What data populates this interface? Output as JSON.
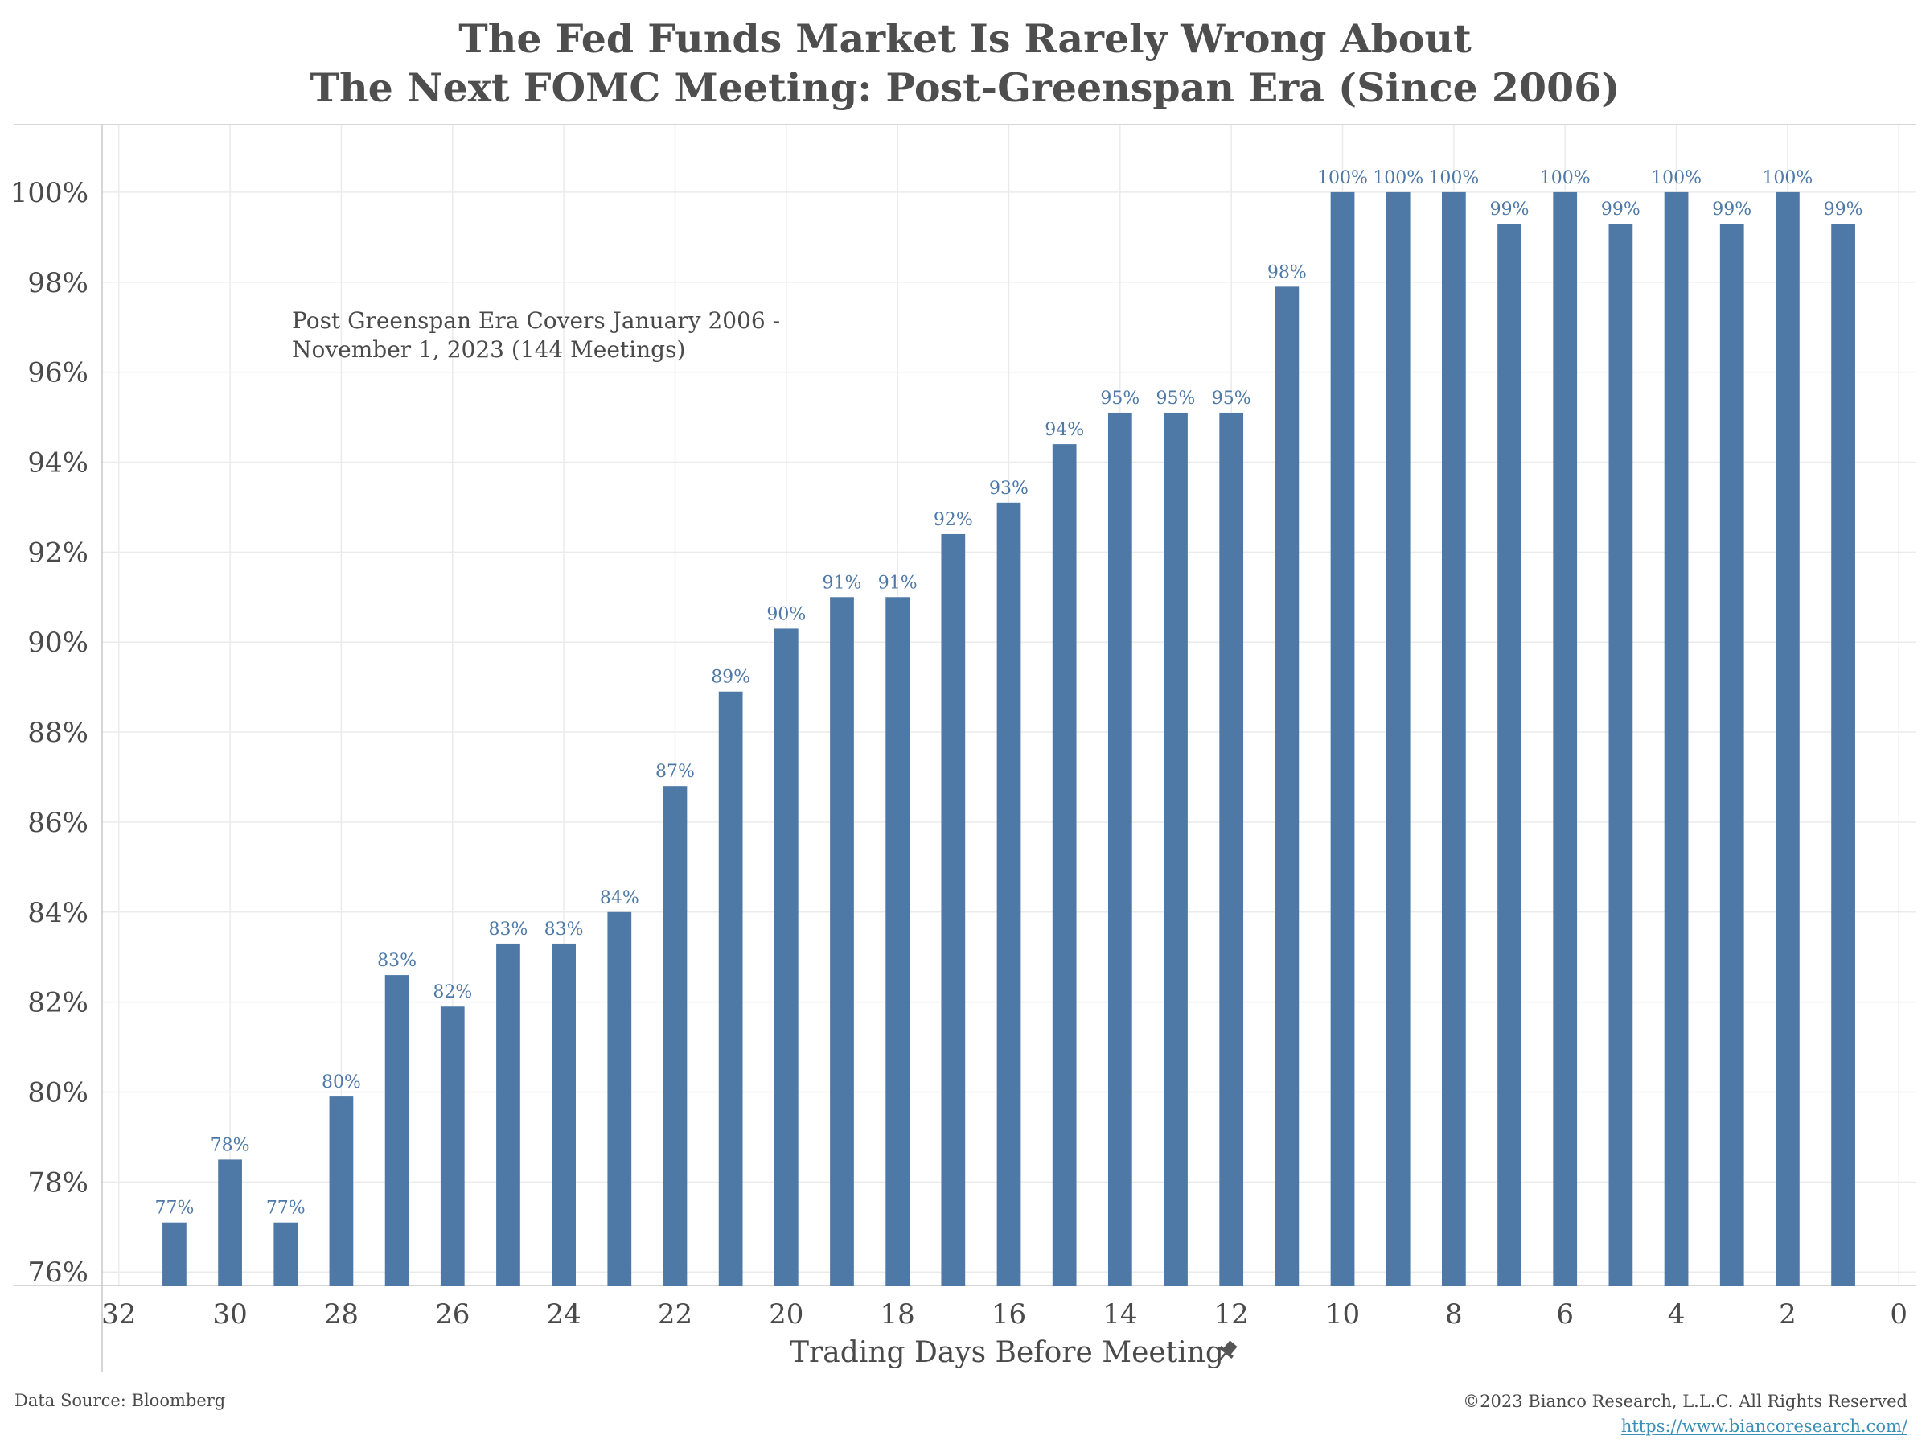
{
  "chart_data": {
    "type": "bar",
    "title": "The Fed Funds Market Is Rarely Wrong About",
    "subtitle": "The Next FOMC Meeting: Post-Greenspan Era (Since 2006)",
    "xlabel": "Trading Days Before Meeting",
    "annotation": "Post Greenspan Era Covers January 2006 -\nNovember 1, 2023 (144 Meetings)",
    "x": [
      31,
      30,
      29,
      28,
      27,
      26,
      25,
      24,
      23,
      22,
      21,
      20,
      19,
      18,
      17,
      16,
      15,
      14,
      13,
      12,
      11,
      10,
      9,
      8,
      7,
      6,
      5,
      4,
      3,
      2,
      1
    ],
    "values": [
      77.1,
      78.5,
      77.1,
      79.9,
      82.6,
      81.9,
      83.3,
      83.3,
      84.0,
      86.8,
      88.9,
      90.3,
      91.0,
      91.0,
      92.4,
      93.1,
      94.4,
      95.1,
      95.1,
      95.1,
      97.9,
      100.0,
      100.0,
      100.0,
      99.3,
      100.0,
      99.3,
      100.0,
      99.3,
      100.0,
      99.3
    ],
    "data_labels": [
      "77%",
      "78%",
      "77%",
      "80%",
      "83%",
      "82%",
      "83%",
      "83%",
      "84%",
      "87%",
      "89%",
      "90%",
      "91%",
      "91%",
      "92%",
      "93%",
      "94%",
      "95%",
      "95%",
      "95%",
      "98%",
      "100%",
      "100%",
      "100%",
      "99%",
      "100%",
      "99%",
      "100%",
      "99%",
      "100%",
      "99%"
    ],
    "ylim": [
      75.7,
      101.5
    ],
    "xlim": [
      32.3,
      -0.3
    ],
    "y_ticks": [
      76,
      78,
      80,
      82,
      84,
      86,
      88,
      90,
      92,
      94,
      96,
      98,
      100
    ],
    "y_tick_labels": [
      "76%",
      "78%",
      "80%",
      "82%",
      "84%",
      "86%",
      "88%",
      "90%",
      "92%",
      "94%",
      "96%",
      "98%",
      "100%"
    ],
    "x_ticks": [
      32,
      30,
      28,
      26,
      24,
      22,
      20,
      18,
      16,
      14,
      12,
      10,
      8,
      6,
      4,
      2,
      0
    ],
    "x_tick_labels": [
      "32",
      "30",
      "28",
      "26",
      "24",
      "22",
      "20",
      "18",
      "16",
      "14",
      "12",
      "10",
      "8",
      "6",
      "4",
      "2",
      "0"
    ],
    "x_reversed": true,
    "grid": true,
    "bar_color": "#4e79a7",
    "label_color": "#4e79a7",
    "grid_color": "#ebebeb",
    "axis_color": "#c8c8c8",
    "pin_icon": "pin-icon"
  },
  "footer": {
    "source": "Data Source: Bloomberg",
    "copyright": "©2023 Bianco Research, L.L.C. All Rights Reserved",
    "url": "https://www.biancoresearch.com/"
  }
}
